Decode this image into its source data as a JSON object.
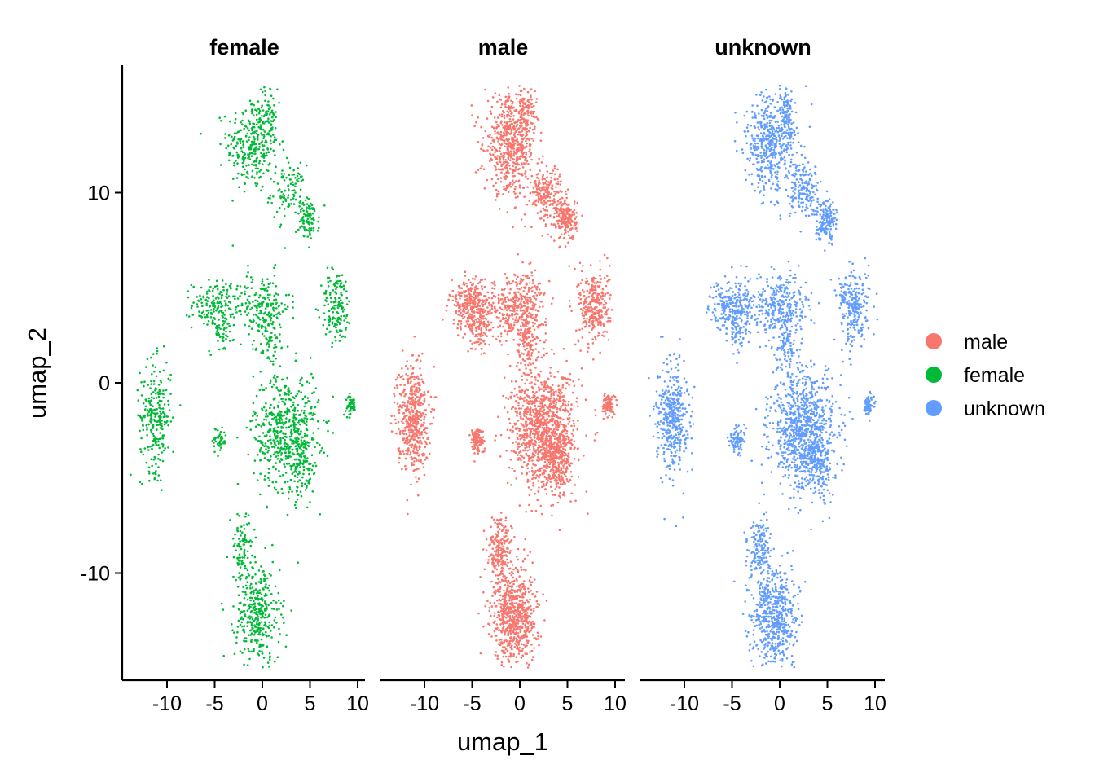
{
  "chart_data": {
    "type": "scatter",
    "facets": [
      "female",
      "male",
      "unknown"
    ],
    "xlabel": "umap_1",
    "ylabel": "umap_2",
    "x_ticks": [
      -10,
      -5,
      0,
      5,
      10
    ],
    "y_ticks": [
      10,
      0,
      -10
    ],
    "xlim": [
      -14.5,
      10.5
    ],
    "ylim": [
      -15.5,
      16.5
    ],
    "legend": {
      "position": "right",
      "entries": [
        {
          "name": "male",
          "color": "#F8766D"
        },
        {
          "name": "female",
          "color": "#00BA38"
        },
        {
          "name": "unknown",
          "color": "#619CFF"
        }
      ]
    },
    "series": [
      {
        "name": "female",
        "color": "#00BA38"
      },
      {
        "name": "male",
        "color": "#F8766D"
      },
      {
        "name": "unknown",
        "color": "#619CFF"
      }
    ],
    "clusters": [
      {
        "cx": -1.0,
        "cy": 12.5,
        "sx": 1.5,
        "sy": 1.4,
        "w": 6
      },
      {
        "cx": 0.7,
        "cy": 14.2,
        "sx": 0.5,
        "sy": 0.7,
        "w": 1
      },
      {
        "cx": 2.7,
        "cy": 10.0,
        "sx": 1.0,
        "sy": 0.8,
        "w": 2
      },
      {
        "cx": 4.9,
        "cy": 8.6,
        "sx": 0.6,
        "sy": 0.6,
        "w": 2
      },
      {
        "cx": -5.0,
        "cy": 4.1,
        "sx": 1.3,
        "sy": 0.7,
        "w": 3
      },
      {
        "cx": -4.3,
        "cy": 2.8,
        "sx": 0.7,
        "sy": 0.7,
        "w": 1
      },
      {
        "cx": 0.0,
        "cy": 4.0,
        "sx": 1.6,
        "sy": 1.0,
        "w": 4
      },
      {
        "cx": 0.8,
        "cy": 2.0,
        "sx": 0.6,
        "sy": 1.0,
        "w": 1
      },
      {
        "cx": 7.8,
        "cy": 4.0,
        "sx": 0.9,
        "sy": 1.1,
        "w": 3
      },
      {
        "cx": -11.2,
        "cy": -1.8,
        "sx": 0.9,
        "sy": 1.6,
        "w": 5
      },
      {
        "cx": -4.5,
        "cy": -3.0,
        "sx": 0.4,
        "sy": 0.4,
        "w": 1
      },
      {
        "cx": 2.5,
        "cy": -2.5,
        "sx": 1.9,
        "sy": 1.7,
        "w": 11
      },
      {
        "cx": 4.0,
        "cy": -4.2,
        "sx": 0.8,
        "sy": 1.0,
        "w": 2
      },
      {
        "cx": 9.3,
        "cy": -1.2,
        "sx": 0.3,
        "sy": 0.3,
        "w": 1
      },
      {
        "cx": -0.5,
        "cy": -12.2,
        "sx": 1.3,
        "sy": 1.4,
        "w": 7
      },
      {
        "cx": -2.1,
        "cy": -8.8,
        "sx": 0.7,
        "sy": 1.0,
        "w": 2
      }
    ]
  }
}
